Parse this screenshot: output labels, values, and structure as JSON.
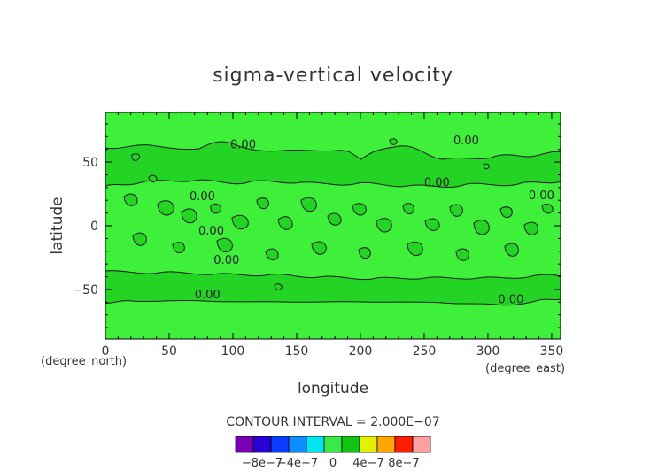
{
  "chart_data": {
    "type": "heatmap",
    "title": "sigma-vertical velocity",
    "xlabel": "longitude",
    "ylabel": "latitude",
    "x_unit_note": "(degree_east)",
    "y_unit_note": "(degree_north)",
    "xlim": [
      0,
      357
    ],
    "ylim": [
      -89,
      89
    ],
    "x_ticks": [
      0,
      50,
      100,
      150,
      200,
      250,
      300,
      350
    ],
    "y_ticks": [
      -50,
      0,
      50
    ],
    "x_tick_labels": [
      "0",
      "50",
      "100",
      "150",
      "200",
      "250",
      "300",
      "350"
    ],
    "y_tick_labels": [
      "−50",
      "0",
      "50"
    ],
    "contour_interval_label": "CONTOUR INTERVAL = 2.000E−07",
    "contour_labels": [
      {
        "text": "0.00",
        "lon": 108,
        "lat": 61
      },
      {
        "text": "0.00",
        "lon": 283,
        "lat": 64
      },
      {
        "text": "0.00",
        "lon": 260,
        "lat": 31
      },
      {
        "text": "0.00",
        "lon": 76,
        "lat": 20
      },
      {
        "text": "0.00",
        "lon": 83,
        "lat": -7
      },
      {
        "text": "0.00",
        "lon": 95,
        "lat": -30
      },
      {
        "text": "0.00",
        "lon": 342,
        "lat": 21
      },
      {
        "text": "0.00",
        "lon": 80,
        "lat": -57
      },
      {
        "text": "0.00",
        "lon": 318,
        "lat": -61
      }
    ],
    "colorbar": {
      "colors": [
        "#7a00b5",
        "#2a00d6",
        "#0a3cff",
        "#0c8cff",
        "#00e6f0",
        "#3be84a",
        "#12c414",
        "#e3f000",
        "#ffa600",
        "#ff1e00",
        "#ffa0a0"
      ],
      "tick_labels": [
        "−8e−7",
        "−4e−7",
        "0",
        "4e−7",
        "8e−7"
      ]
    }
  },
  "colors": {
    "field_light": "#3ef03a",
    "field_dark": "#24d424",
    "contour": "#1a1a1a",
    "frame": "#000000"
  }
}
